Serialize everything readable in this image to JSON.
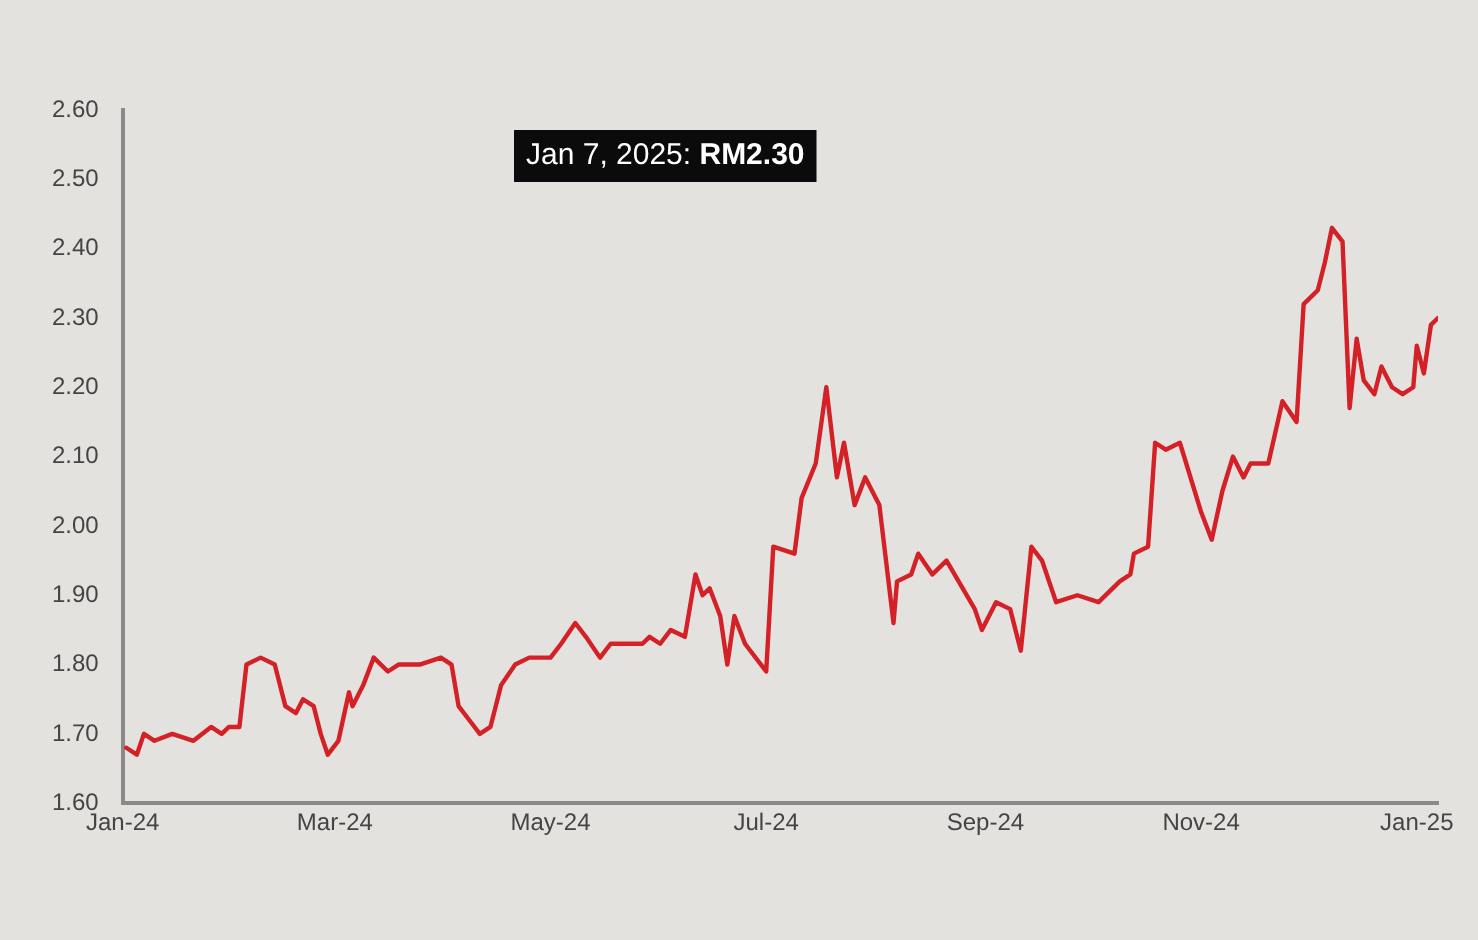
{
  "chart_data": {
    "type": "line",
    "annotations": [
      "Jan 7, 2025: RM2.30"
    ],
    "x": [
      "2024-01-02",
      "2024-01-05",
      "2024-01-07",
      "2024-01-10",
      "2024-01-15",
      "2024-01-21",
      "2024-01-26",
      "2024-01-29",
      "2024-01-31",
      "2024-02-03",
      "2024-02-05",
      "2024-02-09",
      "2024-02-13",
      "2024-02-16",
      "2024-02-19",
      "2024-02-21",
      "2024-02-24",
      "2024-02-26",
      "2024-02-28",
      "2024-03-02",
      "2024-03-05",
      "2024-03-06",
      "2024-03-09",
      "2024-03-12",
      "2024-03-16",
      "2024-03-19",
      "2024-03-25",
      "2024-03-31",
      "2024-04-03",
      "2024-04-05",
      "2024-04-08",
      "2024-04-11",
      "2024-04-14",
      "2024-04-17",
      "2024-04-21",
      "2024-04-25",
      "2024-05-01",
      "2024-05-04",
      "2024-05-08",
      "2024-05-11",
      "2024-05-15",
      "2024-05-18",
      "2024-05-20",
      "2024-05-27",
      "2024-05-29",
      "2024-06-01",
      "2024-06-04",
      "2024-06-08",
      "2024-06-11",
      "2024-06-13",
      "2024-06-15",
      "2024-06-18",
      "2024-06-20",
      "2024-06-22",
      "2024-06-25",
      "2024-07-01",
      "2024-07-03",
      "2024-07-09",
      "2024-07-11",
      "2024-07-15",
      "2024-07-18",
      "2024-07-21",
      "2024-07-23",
      "2024-07-26",
      "2024-07-29",
      "2024-08-02",
      "2024-08-06",
      "2024-08-07",
      "2024-08-11",
      "2024-08-13",
      "2024-08-17",
      "2024-08-21",
      "2024-08-29",
      "2024-08-31",
      "2024-09-04",
      "2024-09-08",
      "2024-09-11",
      "2024-09-14",
      "2024-09-17",
      "2024-09-21",
      "2024-09-27",
      "2024-10-03",
      "2024-10-09",
      "2024-10-12",
      "2024-10-13",
      "2024-10-17",
      "2024-10-19",
      "2024-10-22",
      "2024-10-26",
      "2024-11-01",
      "2024-11-04",
      "2024-11-07",
      "2024-11-10",
      "2024-11-13",
      "2024-11-15",
      "2024-11-20",
      "2024-11-24",
      "2024-11-28",
      "2024-11-30",
      "2024-12-04",
      "2024-12-06",
      "2024-12-08",
      "2024-12-11",
      "2024-12-13",
      "2024-12-15",
      "2024-12-17",
      "2024-12-20",
      "2024-12-22",
      "2024-12-25",
      "2024-12-28",
      "2024-12-31",
      "2025-01-01",
      "2025-01-03",
      "2025-01-05",
      "2025-01-07"
    ],
    "series": [
      {
        "color": "#d42027",
        "values": [
          1.68,
          1.67,
          1.7,
          1.69,
          1.7,
          1.69,
          1.71,
          1.7,
          1.71,
          1.71,
          1.8,
          1.81,
          1.8,
          1.74,
          1.73,
          1.75,
          1.74,
          1.7,
          1.67,
          1.69,
          1.76,
          1.74,
          1.77,
          1.81,
          1.79,
          1.8,
          1.8,
          1.81,
          1.8,
          1.74,
          1.72,
          1.7,
          1.71,
          1.77,
          1.8,
          1.81,
          1.81,
          1.83,
          1.86,
          1.84,
          1.81,
          1.83,
          1.83,
          1.83,
          1.84,
          1.83,
          1.85,
          1.84,
          1.93,
          1.9,
          1.91,
          1.87,
          1.8,
          1.87,
          1.83,
          1.79,
          1.97,
          1.96,
          2.04,
          2.09,
          2.2,
          2.07,
          2.12,
          2.03,
          2.07,
          2.03,
          1.86,
          1.92,
          1.93,
          1.96,
          1.93,
          1.95,
          1.88,
          1.85,
          1.89,
          1.88,
          1.82,
          1.97,
          1.95,
          1.89,
          1.9,
          1.89,
          1.92,
          1.93,
          1.96,
          1.97,
          2.12,
          2.11,
          2.12,
          2.02,
          1.98,
          2.05,
          2.1,
          2.07,
          2.09,
          2.09,
          2.18,
          2.15,
          2.32,
          2.34,
          2.38,
          2.43,
          2.41,
          2.17,
          2.27,
          2.21,
          2.19,
          2.23,
          2.2,
          2.19,
          2.2,
          2.26,
          2.22,
          2.29,
          2.3
        ]
      }
    ],
    "xlim": [
      "2024-01-01",
      "2025-01-07"
    ],
    "xticks": [
      {
        "value": "2024-01-01",
        "label": "Jan-24"
      },
      {
        "value": "2024-03-01",
        "label": "Mar-24"
      },
      {
        "value": "2024-05-01",
        "label": "May-24"
      },
      {
        "value": "2024-07-01",
        "label": "Jul-24"
      },
      {
        "value": "2024-09-01",
        "label": "Sep-24"
      },
      {
        "value": "2024-11-01",
        "label": "Nov-24"
      },
      {
        "value": "2025-01-01",
        "label": "Jan-25"
      }
    ],
    "ylim": [
      1.6,
      2.6
    ],
    "yticks": [
      {
        "value": 1.6,
        "label": "1.60"
      },
      {
        "value": 1.7,
        "label": "1.70"
      },
      {
        "value": 1.8,
        "label": "1.80"
      },
      {
        "value": 1.9,
        "label": "1.90"
      },
      {
        "value": 2.0,
        "label": "2.00"
      },
      {
        "value": 2.1,
        "label": "2.10"
      },
      {
        "value": 2.2,
        "label": "2.20"
      },
      {
        "value": 2.3,
        "label": "2.30"
      },
      {
        "value": 2.4,
        "label": "2.40"
      },
      {
        "value": 2.5,
        "label": "2.50"
      },
      {
        "value": 2.6,
        "label": "2.60"
      }
    ],
    "grid": false,
    "legend": false,
    "marker": "none",
    "line_style": "solid"
  }
}
